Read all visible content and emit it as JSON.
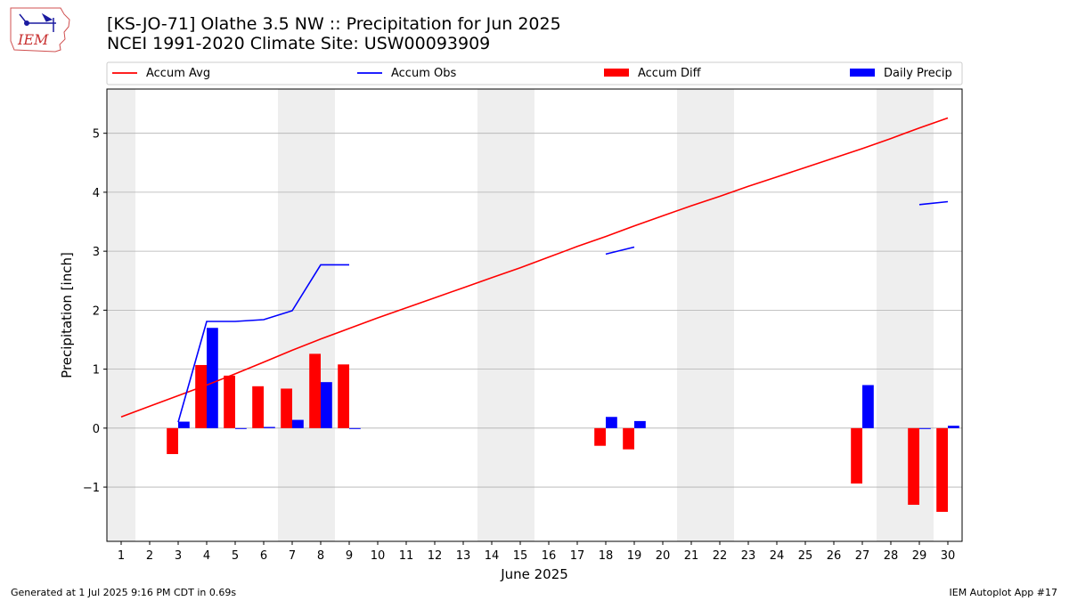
{
  "header": {
    "title_line1": "[KS-JO-71] Olathe 3.5 NW :: Precipitation for Jun 2025",
    "title_line2": "NCEI 1991-2020 Climate Site: USW00093909"
  },
  "logo": {
    "text": "IEM",
    "icon": "iem-iowa-map-logo"
  },
  "footer": {
    "generated": "Generated at 1 Jul 2025 9:16 PM CDT in 0.69s",
    "app": "IEM Autoplot App #17"
  },
  "colors": {
    "accum_avg": "#ff0000",
    "accum_obs": "#0000ff",
    "accum_diff": "#ff0000",
    "daily_precip": "#0000ff",
    "weekend_shade": "#eeeeee",
    "grid": "#b0b0b0"
  },
  "chart_data": {
    "type": "bar",
    "xlabel": "June 2025",
    "ylabel": "Precipitation [inch]",
    "xlim": [
      0.5,
      30.5
    ],
    "ylim": [
      -1.92,
      5.75
    ],
    "yticks": [
      -1,
      0,
      1,
      2,
      3,
      4,
      5
    ],
    "yticklabels": [
      "−1",
      "0",
      "1",
      "2",
      "3",
      "4",
      "5"
    ],
    "x": [
      1,
      2,
      3,
      4,
      5,
      6,
      7,
      8,
      9,
      10,
      11,
      12,
      13,
      14,
      15,
      16,
      17,
      18,
      19,
      20,
      21,
      22,
      23,
      24,
      25,
      26,
      27,
      28,
      29,
      30
    ],
    "weekend_days": [
      1,
      7,
      8,
      14,
      15,
      21,
      22,
      28,
      29
    ],
    "grid": "y",
    "legend_position": "top",
    "series": [
      {
        "name": "Accum Avg",
        "kind": "line",
        "values": [
          0.19,
          0.37,
          0.55,
          0.73,
          0.92,
          1.12,
          1.32,
          1.51,
          1.69,
          1.87,
          2.04,
          2.21,
          2.38,
          2.55,
          2.72,
          2.9,
          3.08,
          3.25,
          3.43,
          3.6,
          3.77,
          3.93,
          4.1,
          4.26,
          4.42,
          4.58,
          4.74,
          4.91,
          5.09,
          5.26
        ]
      },
      {
        "name": "Accum Obs",
        "kind": "line",
        "values": [
          null,
          null,
          0.1,
          1.81,
          1.81,
          1.84,
          1.99,
          2.77,
          2.77,
          null,
          null,
          null,
          null,
          null,
          null,
          null,
          null,
          2.95,
          3.07,
          null,
          null,
          null,
          null,
          null,
          null,
          null,
          null,
          null,
          3.79,
          3.84
        ]
      },
      {
        "name": "Accum Diff",
        "kind": "bar",
        "values": [
          null,
          null,
          -0.44,
          1.07,
          0.89,
          0.71,
          0.67,
          1.26,
          1.08,
          null,
          null,
          null,
          null,
          null,
          null,
          null,
          null,
          -0.3,
          -0.36,
          null,
          null,
          null,
          null,
          null,
          null,
          null,
          -0.94,
          null,
          -1.3,
          -1.42
        ]
      },
      {
        "name": "Daily Precip",
        "kind": "bar",
        "values": [
          null,
          null,
          0.11,
          1.7,
          0.0,
          0.02,
          0.14,
          0.78,
          0.0,
          null,
          null,
          null,
          null,
          null,
          null,
          null,
          null,
          0.19,
          0.12,
          null,
          null,
          null,
          null,
          null,
          null,
          null,
          0.73,
          null,
          0.0,
          0.04
        ]
      }
    ]
  }
}
